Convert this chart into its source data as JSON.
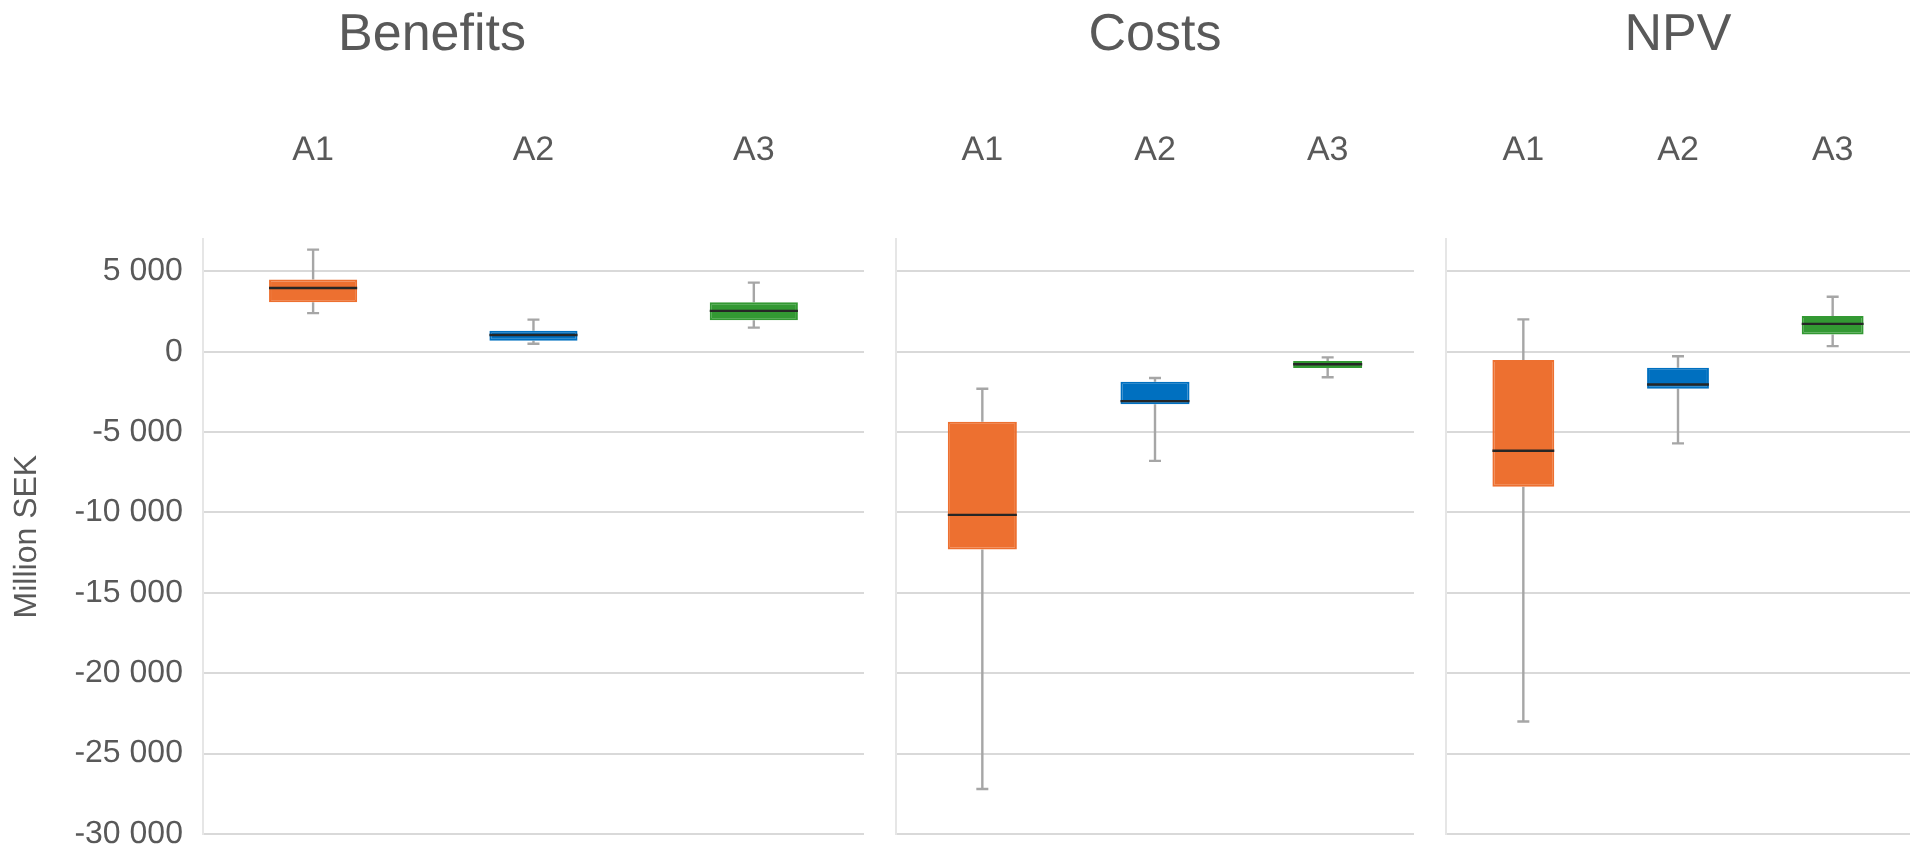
{
  "chart_data": [
    {
      "type": "box",
      "title": "Benefits",
      "ylabel": "Million SEK",
      "categories": [
        "A1",
        "A2",
        "A3"
      ],
      "colors": [
        "#ed7030",
        "#0070c0",
        "#339933"
      ],
      "boxes": [
        {
          "low": 2400,
          "q1": 3080,
          "median": 3960,
          "q3": 4500,
          "high": 6350
        },
        {
          "low": 500,
          "q1": 690,
          "median": 1040,
          "q3": 1300,
          "high": 2000
        },
        {
          "low": 1500,
          "q1": 1960,
          "median": 2540,
          "q3": 3080,
          "high": 4300
        }
      ],
      "ylim": [
        -30000,
        7000
      ],
      "yticks": [
        {
          "value": -30000,
          "label": "-30 000"
        },
        {
          "value": -25000,
          "label": "-25 000"
        },
        {
          "value": -20000,
          "label": "-20 000"
        },
        {
          "value": -15000,
          "label": "-15 000"
        },
        {
          "value": -10000,
          "label": "-10 000"
        },
        {
          "value": -5000,
          "label": "-5 000"
        },
        0,
        {
          "value": 5000,
          "label": "5 000"
        }
      ],
      "grid": "y"
    },
    {
      "type": "box",
      "title": "Costs",
      "categories": [
        "A1",
        "A2",
        "A3"
      ],
      "colors": [
        "#ed7030",
        "#0070c0",
        "#339933"
      ],
      "boxes": [
        {
          "low": -27200,
          "q1": -12300,
          "median": -10150,
          "q3": -4350,
          "high": -2300
        },
        {
          "low": -6790,
          "q1": -3260,
          "median": -3070,
          "q3": -1860,
          "high": -1630
        },
        {
          "low": -1590,
          "q1": -1010,
          "median": -780,
          "q3": -580,
          "high": -350
        }
      ],
      "ylim": [
        -30000,
        7000
      ],
      "yticks": [
        -30000,
        -25000,
        -20000,
        -15000,
        -10000,
        -5000,
        0,
        5000
      ],
      "grid": "y",
      "tick_labels": "x"
    },
    {
      "type": "box",
      "title": "NPV",
      "categories": [
        "A1",
        "A2",
        "A3"
      ],
      "colors": [
        "#ed7030",
        "#0070c0",
        "#339933"
      ],
      "boxes": [
        {
          "low": -23000,
          "q1": -8400,
          "median": -6160,
          "q3": -510,
          "high": 2010
        },
        {
          "low": -5700,
          "q1": -2310,
          "median": -2040,
          "q3": -1000,
          "high": -280
        },
        {
          "low": 350,
          "q1": 1070,
          "median": 1730,
          "q3": 2230,
          "high": 3420
        }
      ],
      "ylim": [
        -30000,
        7000
      ],
      "yticks": [
        -30000,
        -25000,
        -20000,
        -15000,
        -10000,
        -5000,
        0,
        5000
      ],
      "grid": "y",
      "tick_labels": "x"
    }
  ]
}
